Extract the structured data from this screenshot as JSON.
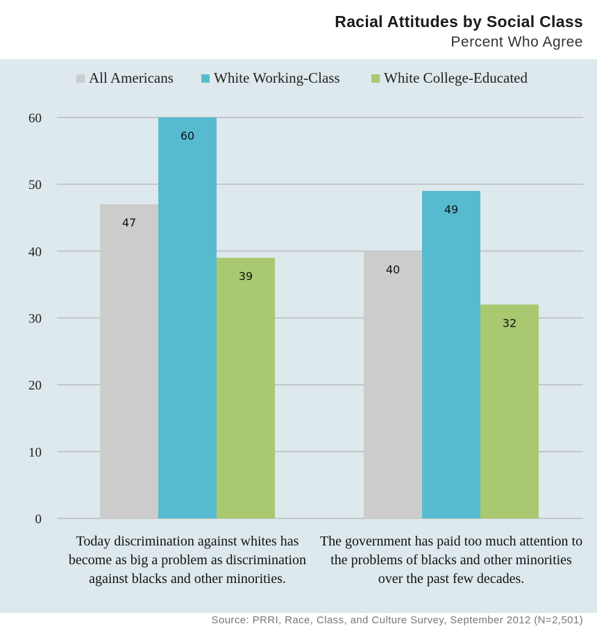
{
  "title": "Racial Attitudes by Social Class",
  "subtitle": "Percent Who Agree",
  "source": "Source: PRRI, Race, Class, and Culture Survey, September 2012 (N=2,501)",
  "colors": {
    "panel_background": "#dde9ec",
    "all_americans": "#cccccc",
    "white_working_class": "#57bbd0",
    "white_college_educated": "#a9c870",
    "gridline": "#bbbbbb"
  },
  "chart_data": {
    "type": "bar",
    "categories": [
      "Today discrimination against whites has become as big a problem as discrimination against blacks and other minorities.",
      "The government has paid too much attention to the problems of blacks and other minorities over the past few decades."
    ],
    "series": [
      {
        "name": "All Americans",
        "values": [
          47,
          40
        ]
      },
      {
        "name": "White Working-Class",
        "values": [
          60,
          49
        ]
      },
      {
        "name": "White College-Educated",
        "values": [
          39,
          32
        ]
      }
    ],
    "ylim": [
      0,
      60
    ],
    "yticks": [
      "0",
      "10",
      "20",
      "30",
      "40",
      "50",
      "60"
    ],
    "grid": true,
    "legend_position": "top",
    "data_labels": true
  }
}
